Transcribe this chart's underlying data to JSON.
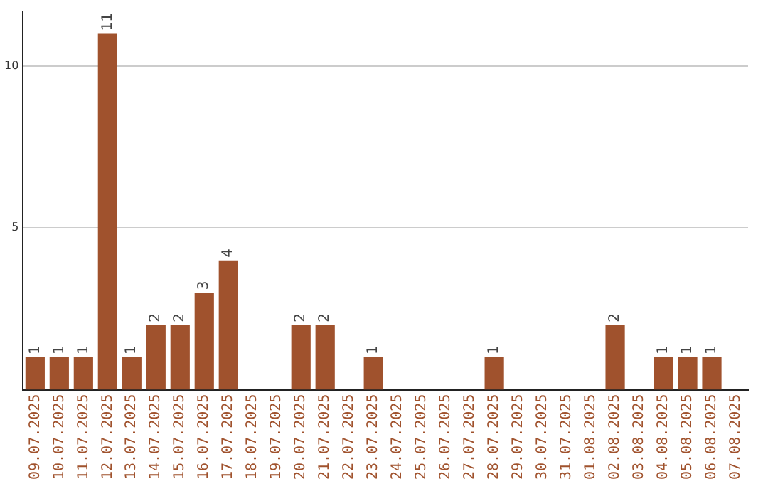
{
  "chart_data": {
    "type": "bar",
    "categories": [
      "09.07.2025",
      "10.07.2025",
      "11.07.2025",
      "12.07.2025",
      "13.07.2025",
      "14.07.2025",
      "15.07.2025",
      "16.07.2025",
      "17.07.2025",
      "18.07.2025",
      "19.07.2025",
      "20.07.2025",
      "21.07.2025",
      "22.07.2025",
      "23.07.2025",
      "24.07.2025",
      "25.07.2025",
      "26.07.2025",
      "27.07.2025",
      "28.07.2025",
      "29.07.2025",
      "30.07.2025",
      "31.07.2025",
      "01.08.2025",
      "02.08.2025",
      "03.08.2025",
      "04.08.2025",
      "05.08.2025",
      "06.08.2025",
      "07.08.2025"
    ],
    "values": [
      1,
      1,
      1,
      11,
      1,
      2,
      2,
      3,
      4,
      0,
      0,
      2,
      2,
      0,
      1,
      0,
      0,
      0,
      0,
      1,
      0,
      0,
      0,
      0,
      2,
      0,
      1,
      1,
      1,
      0
    ],
    "value_labels": [
      "1",
      "1",
      "1",
      "11",
      "1",
      "2",
      "2",
      "3",
      "4",
      null,
      null,
      "2",
      "2",
      null,
      "1",
      null,
      null,
      null,
      null,
      "1",
      null,
      null,
      null,
      null,
      "2",
      null,
      "1",
      "1",
      "1",
      null
    ],
    "color": "#a0522d",
    "ylim": [
      0,
      11.7
    ],
    "yticks": [
      5,
      10
    ],
    "grid": "y",
    "legend": false
  }
}
